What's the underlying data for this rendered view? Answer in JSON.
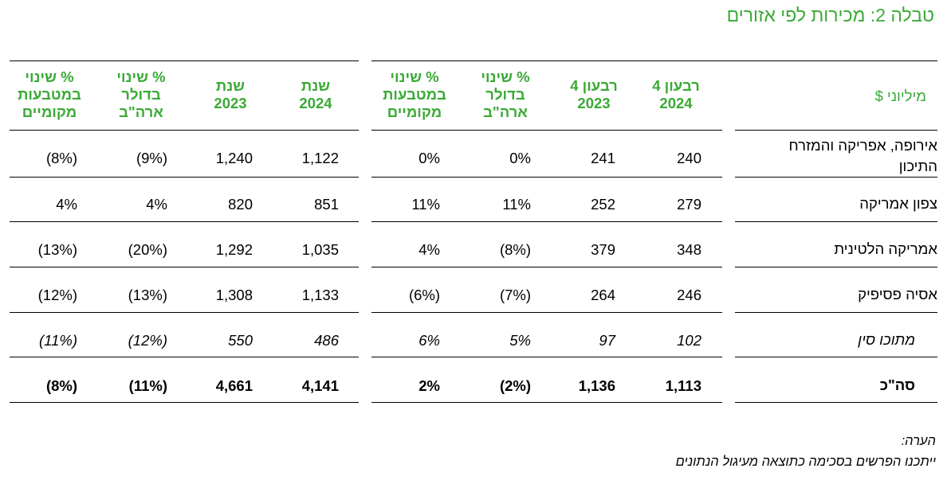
{
  "title": "טבלה 2: מכירות לפי אזורים",
  "units_label": "מיליוני $",
  "headers": [
    {
      "lines": [
        "רבעון 4",
        "2024"
      ]
    },
    {
      "lines": [
        "רבעון 4",
        "2023"
      ]
    },
    {
      "lines": [
        "% שינוי",
        "בדולר",
        "ארה\"ב"
      ]
    },
    {
      "lines": [
        "% שינוי",
        "במטבעות",
        "מקומיים"
      ]
    },
    {
      "lines": [
        "שנת",
        "2024"
      ]
    },
    {
      "lines": [
        "שנת",
        "2023"
      ]
    },
    {
      "lines": [
        "% שינוי",
        "בדולר",
        "ארה\"ב"
      ]
    },
    {
      "lines": [
        "% שינוי",
        "במטבעות",
        "מקומיים"
      ]
    }
  ],
  "rows": [
    {
      "label": "אירופה, אפריקה והמזרח התיכון",
      "label_lines": [
        "אירופה, אפריקה והמזרח",
        "התיכון"
      ],
      "values": [
        "240",
        "241",
        "0%",
        "0%",
        "1,122",
        "1,240",
        "(9%)",
        "(8%)"
      ],
      "style": "normal"
    },
    {
      "label": "צפון אמריקה",
      "label_lines": [
        "צפון אמריקה"
      ],
      "values": [
        "279",
        "252",
        "11%",
        "11%",
        "851",
        "820",
        "4%",
        "4%"
      ],
      "style": "normal"
    },
    {
      "label": "אמריקה הלטינית",
      "label_lines": [
        "אמריקה הלטינית"
      ],
      "values": [
        "348",
        "379",
        "(8%)",
        "4%",
        "1,035",
        "1,292",
        "(20%)",
        "(13%)"
      ],
      "style": "normal"
    },
    {
      "label": "אסיה פסיפיק",
      "label_lines": [
        "אסיה פסיפיק"
      ],
      "values": [
        "246",
        "264",
        "(7%)",
        "(6%)",
        "1,133",
        "1,308",
        "(13%)",
        "(12%)"
      ],
      "style": "normal"
    },
    {
      "label": "מתוכו סין",
      "label_lines": [
        "מתוכו סין"
      ],
      "values": [
        "102",
        "97",
        "5%",
        "6%",
        "486",
        "550",
        "(12%)",
        "(11%)"
      ],
      "style": "italic"
    },
    {
      "label": "סה\"כ",
      "label_lines": [
        "סה\"כ"
      ],
      "values": [
        "1,113",
        "1,136",
        "(2%)",
        "2%",
        "4,141",
        "4,661",
        "(11%)",
        "(8%)"
      ],
      "style": "bold"
    }
  ],
  "note": {
    "heading": "הערה:",
    "text": "ייתכנו הפרשים בסכימה כתוצאה מעיגול הנתונים"
  },
  "colors": {
    "accent_green": "#3aaa35",
    "text": "#000000"
  }
}
